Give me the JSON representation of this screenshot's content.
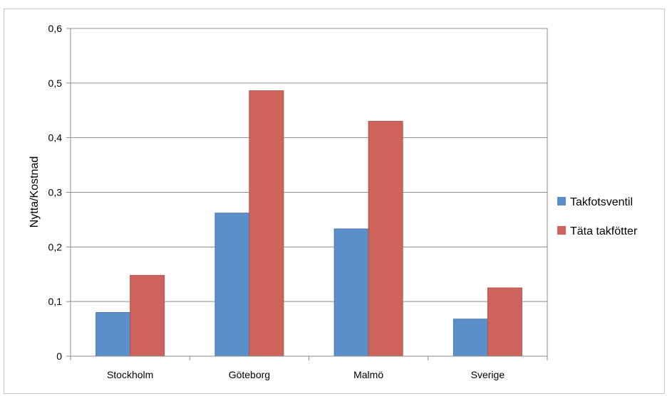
{
  "chart_data": {
    "type": "bar",
    "categories": [
      "Stockholm",
      "Göteborg",
      "Malmö",
      "Sverige"
    ],
    "series": [
      {
        "name": "Takfotsventil",
        "values": [
          0.08,
          0.262,
          0.233,
          0.068
        ],
        "color": "#5b8fc9"
      },
      {
        "name": "Täta takfötter",
        "values": [
          0.148,
          0.486,
          0.43,
          0.125
        ],
        "color": "#cd635b"
      }
    ],
    "ylabel": "Nytta/Kostnad",
    "xlabel": "",
    "ylim": [
      0,
      0.6
    ],
    "yticks": [
      "0",
      "0,1",
      "0,2",
      "0,3",
      "0,4",
      "0,5",
      "0,6"
    ],
    "ytick_values": [
      0,
      0.1,
      0.2,
      0.3,
      0.4,
      0.5,
      0.6
    ],
    "grid": true,
    "legend_position": "right"
  }
}
